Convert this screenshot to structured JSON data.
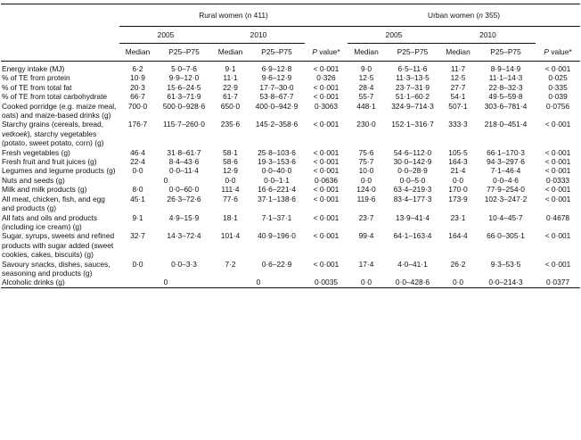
{
  "table": {
    "group_headers": [
      {
        "label_pre": "Rural women (",
        "label_italic": "n",
        "label_post": " 411)"
      },
      {
        "label_pre": "Urban women (",
        "label_italic": "n",
        "label_post": " 355)"
      }
    ],
    "years": [
      "2005",
      "2010",
      "2005",
      "2010"
    ],
    "col_labels": {
      "median": "Median",
      "p25_p75": "P25–P75",
      "p_value_italic": "P",
      "p_value_rest": " value*"
    },
    "rows": [
      {
        "label": "Energy intake (MJ)",
        "cells": [
          "6·2",
          "5·0–7·6",
          "9·1",
          "6·9–12·8",
          "< 0·001",
          "9·0",
          "6·5–11·6",
          "11·7",
          "8·9–14·9",
          "< 0·001"
        ]
      },
      {
        "label": "% of TE from protein",
        "cells": [
          "10·9",
          "9·9–12·0",
          "11·1",
          "9·6–12·9",
          "0·326",
          "12·5",
          "11·3–13·5",
          "12·5",
          "11·1–14·3",
          "0·025"
        ]
      },
      {
        "label": "% of TE from total fat",
        "cells": [
          "20·3",
          "15·6–24·5",
          "22·9",
          "17·7–30·0",
          "< 0·001",
          "28·4",
          "23·7–31·9",
          "27·7",
          "22·8–32·3",
          "0·335"
        ]
      },
      {
        "label": "% of TE from total carbohydrate",
        "cells": [
          "66·7",
          "61·3–71·9",
          "61·7",
          "53·8–67·7",
          "< 0·001",
          "55·7",
          "51·1–60·2",
          "54·1",
          "49·5–59·8",
          "0·039"
        ]
      },
      {
        "label": "Cooked porridge (e.g. maize meal, oats) and maize-based drinks (g)",
        "cells": [
          "700·0",
          "500·0–928·6",
          "650·0",
          "400·0–942·9",
          "0·3063",
          "448·1",
          "324·9–714·3",
          "507·1",
          "303·6–781·4",
          "0·0756"
        ]
      },
      {
        "label_pre": "Starchy grains (cereals, bread, ",
        "label_italic": "vetkoek",
        "label_post": "), starchy vegetables (potato, sweet potato, corn) (g)",
        "cells": [
          "176·7",
          "115·7–260·0",
          "235·6",
          "145·2–358·6",
          "< 0·001",
          "230·0",
          "152·1–316·7",
          "333·3",
          "218·0–451·4",
          "< 0·001"
        ]
      },
      {
        "label": "Fresh vegetables (g)",
        "cells": [
          "46·4",
          "31·8–61·7",
          "58·1",
          "25·8–103·6",
          "< 0·001",
          "75·6",
          "54·6–112·0",
          "105·5",
          "66·1–170·3",
          "< 0·001"
        ]
      },
      {
        "label": "Fresh fruit and fruit juices (g)",
        "cells": [
          "22·4",
          "8·4–43·6",
          "58·6",
          "19·3–153·6",
          "< 0·001",
          "75·7",
          "30·0–142·9",
          "164·3",
          "94·3–297·6",
          "< 0·001"
        ]
      },
      {
        "label": "Legumes and legume products (g)",
        "cells": [
          "0·0",
          "0·0–11·4",
          "12·9",
          "0·0–40·0",
          "< 0·001",
          "10·0",
          "0·0–28·9",
          "21·4",
          "7·1–46·4",
          "< 0·001"
        ]
      },
      {
        "label": "Nuts and seeds (g)",
        "merged_rural_2005": "0",
        "cells": [
          "",
          "",
          "0·0",
          "0·0–1·1",
          "0·0636",
          "0·0",
          "0·0–5·0",
          "0·0",
          "0·0–4·6",
          "0·0333"
        ]
      },
      {
        "label": "Milk and milk products (g)",
        "cells": [
          "8·0",
          "0·0–60·0",
          "111·4",
          "16·6–221·4",
          "< 0·001",
          "124·0",
          "63·4–219·3",
          "170·0",
          "77·9–254·0",
          "< 0·001"
        ]
      },
      {
        "label": "All meat, chicken, fish, and egg and products (g)",
        "cells": [
          "45·1",
          "26·3–72·6",
          "77·6",
          "37·1–138·6",
          "< 0·001",
          "119·6",
          "83·4–177·3",
          "173·9",
          "102·3–247·2",
          "< 0·001"
        ]
      },
      {
        "label": "All fats and oils and products (including ice cream) (g)",
        "cells": [
          "9·1",
          "4·9–15·9",
          "18·1",
          "7·1–37·1",
          "< 0·001",
          "23·7",
          "13·9–41·4",
          "23·1",
          "10·4–45·7",
          "0·4678"
        ]
      },
      {
        "label": "Sugar, syrups, sweets and refined products with sugar added (sweet cookies, cakes, biscuits) (g)",
        "cells": [
          "32·7",
          "14·3–72·4",
          "101·4",
          "40·9–196·0",
          "< 0·001",
          "99·4",
          "64·1–163·4",
          "164·4",
          "66·0–305·1",
          "< 0·001"
        ]
      },
      {
        "label": "Savoury snacks, dishes, sauces, seasoning and products (g)",
        "cells": [
          "0·0",
          "0·0–3·3",
          "7·2",
          "0·6–22·9",
          "< 0·001",
          "17·4",
          "4·0–41·1",
          "26·2",
          "9·3–53·5",
          "< 0·001"
        ]
      },
      {
        "label": "Alcoholic drinks (g)",
        "merged_rural_2005": "0",
        "merged_rural_2010": "0",
        "cells": [
          "",
          "",
          "",
          "",
          "0·0035",
          "0·0",
          "0·0–428·6",
          "0·0",
          "0·0–214·3",
          "0·0377"
        ]
      }
    ]
  }
}
